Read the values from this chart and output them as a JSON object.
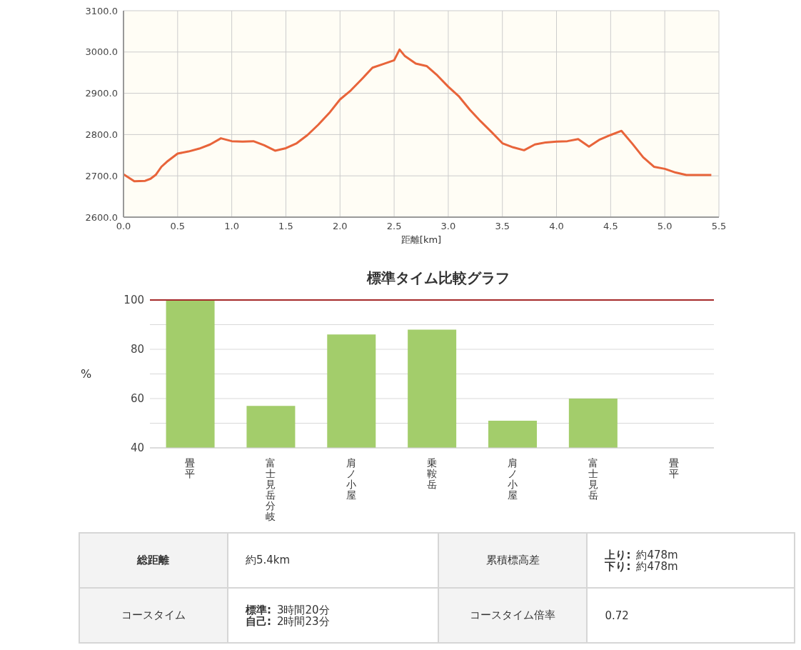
{
  "chart_data": [
    {
      "type": "line",
      "xlabel": "距離[km]",
      "x": [
        0,
        0.1,
        0.2,
        0.25,
        0.3,
        0.35,
        0.4,
        0.45,
        0.5,
        0.6,
        0.7,
        0.8,
        0.9,
        1.0,
        1.1,
        1.2,
        1.3,
        1.4,
        1.5,
        1.6,
        1.7,
        1.8,
        1.9,
        2.0,
        2.1,
        2.2,
        2.3,
        2.4,
        2.5,
        2.55,
        2.6,
        2.7,
        2.8,
        2.9,
        3.0,
        3.1,
        3.2,
        3.3,
        3.4,
        3.5,
        3.6,
        3.7,
        3.8,
        3.9,
        4.0,
        4.1,
        4.2,
        4.3,
        4.4,
        4.5,
        4.6,
        4.7,
        4.8,
        4.9,
        5.0,
        5.1,
        5.2,
        5.3,
        5.43
      ],
      "series": [
        {
          "color": "#e8643a",
          "values": [
            2704,
            2687,
            2688,
            2693,
            2703,
            2722,
            2734,
            2744,
            2754,
            2759,
            2766,
            2776,
            2791,
            2784,
            2783,
            2784,
            2774,
            2761,
            2767,
            2779,
            2799,
            2824,
            2852,
            2885,
            2907,
            2934,
            2962,
            2971,
            2980,
            3006,
            2990,
            2972,
            2966,
            2943,
            2916,
            2892,
            2860,
            2832,
            2806,
            2779,
            2769,
            2762,
            2776,
            2781,
            2783,
            2784,
            2789,
            2771,
            2788,
            2799,
            2809,
            2778,
            2745,
            2722,
            2717,
            2708,
            2702,
            2702,
            2702
          ]
        }
      ],
      "xlim": [
        0,
        5.5
      ],
      "ylim": [
        2600,
        3100
      ],
      "xticks": [
        {
          "value": 0,
          "label": "0.0"
        },
        {
          "value": 0.5,
          "label": "0.5"
        },
        {
          "value": 1,
          "label": "1.0"
        },
        {
          "value": 1.5,
          "label": "1.5"
        },
        {
          "value": 2,
          "label": "2.0"
        },
        {
          "value": 2.5,
          "label": "2.5"
        },
        {
          "value": 3,
          "label": "3.0"
        },
        {
          "value": 3.5,
          "label": "3.5"
        },
        {
          "value": 4,
          "label": "4.0"
        },
        {
          "value": 4.5,
          "label": "4.5"
        },
        {
          "value": 5,
          "label": "5.0"
        },
        {
          "value": 5.5,
          "label": "5.5"
        }
      ],
      "yticks": [
        {
          "value": 2600,
          "label": "2600.0"
        },
        {
          "value": 2700,
          "label": "2700.0"
        },
        {
          "value": 2800,
          "label": "2800.0"
        },
        {
          "value": 2900,
          "label": "2900.0"
        },
        {
          "value": 3000,
          "label": "3000.0"
        },
        {
          "value": 3100,
          "label": "3100.0"
        }
      ],
      "grid": true,
      "marker": "none"
    },
    {
      "type": "bar",
      "title": "標準タイム比較グラフ",
      "ylabel": "%",
      "categories": [
        "畳平",
        "富士見岳分岐",
        "肩ノ小屋",
        "乗鞍岳",
        "肩ノ小屋",
        "富士見岳",
        "畳平"
      ],
      "values": [
        100,
        57,
        86,
        88,
        51,
        60,
        null
      ],
      "color": "#a3cd6b",
      "ylim": [
        40,
        100
      ],
      "yticks": [
        40,
        {
          "value": 50,
          "label": null
        },
        60,
        {
          "value": 70,
          "label": null
        },
        80,
        {
          "value": 90,
          "label": null
        },
        100
      ],
      "ref_lines": [
        {
          "axis": "y",
          "value": 100,
          "color": "#a52a2a"
        }
      ],
      "grid": "y"
    },
    {
      "type": "other",
      "annotations": [
        "総距離",
        "約5.4km",
        "累積標高差",
        "上り:",
        "約478m",
        "下り:",
        "約478m",
        "コースタイム",
        "標準:",
        "3時間20分",
        "自己:",
        "2時間23分",
        "コースタイム倍率",
        "0.72"
      ]
    }
  ]
}
